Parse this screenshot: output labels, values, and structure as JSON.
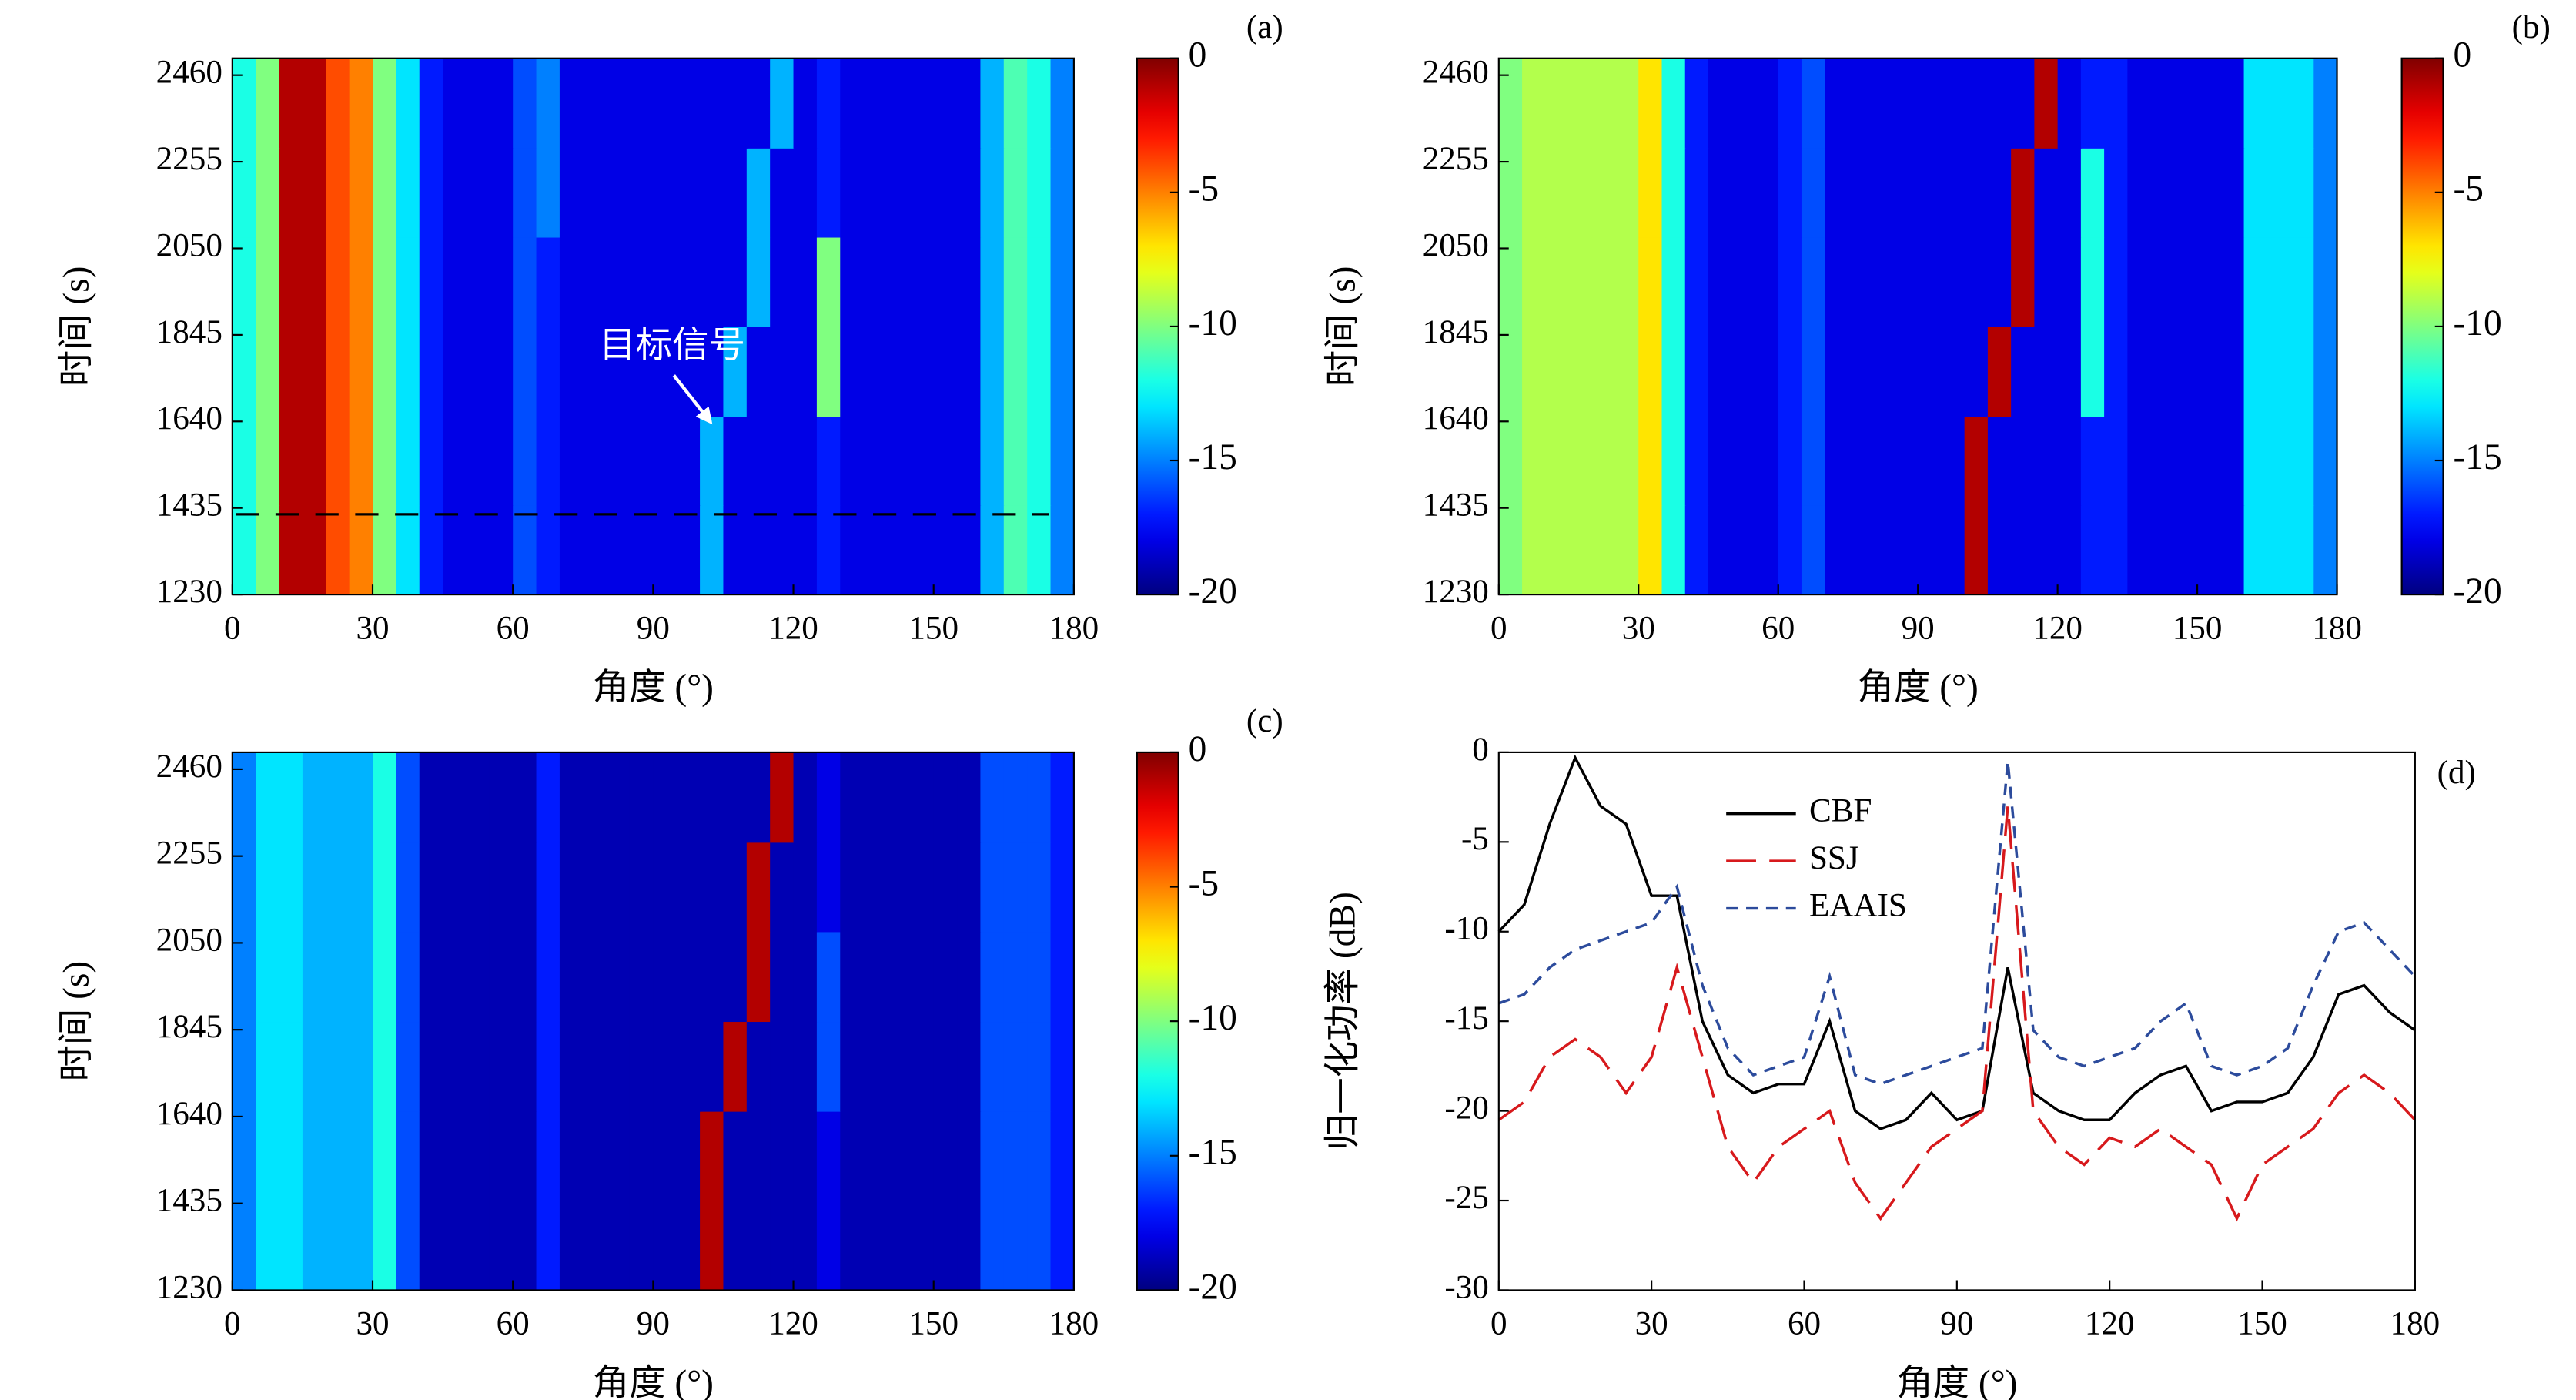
{
  "chart_data": [
    {
      "type": "heatmap",
      "label": "(a)",
      "xlabel": "角度 (°)",
      "ylabel": "时间 (s)",
      "colormap": "jet",
      "xlim": [
        0,
        180
      ],
      "xticks": [
        0,
        30,
        60,
        90,
        120,
        150,
        180
      ],
      "ylim": [
        1230,
        2500
      ],
      "yticks": [
        1230,
        1435,
        1640,
        1845,
        2050,
        2255,
        2460
      ],
      "zlim": [
        -20,
        0
      ],
      "zticks": [
        0,
        -5,
        -10,
        -15,
        -20
      ],
      "annotation": "目标信号",
      "hline": 1420,
      "x_bins": [
        0,
        5,
        10,
        15,
        20,
        25,
        30,
        35,
        40,
        45,
        50,
        55,
        60,
        65,
        70,
        75,
        80,
        85,
        90,
        95,
        100,
        105,
        110,
        115,
        120,
        125,
        130,
        135,
        140,
        145,
        150,
        155,
        160,
        165,
        170,
        175,
        180
      ],
      "y_bins": [
        1230,
        1442,
        1653,
        1865,
        2077,
        2288,
        2500
      ],
      "z": [
        [
          -12,
          -10,
          -1,
          -1,
          -4,
          -5,
          -10,
          -13,
          -17,
          -18,
          -18,
          -18,
          -16,
          -17,
          -18,
          -18,
          -18,
          -18,
          -18,
          -18,
          -14,
          -18,
          -18,
          -18,
          -18,
          -17,
          -18,
          -18,
          -18,
          -18,
          -18,
          -18,
          -14,
          -11,
          -12,
          -15
        ],
        [
          -12,
          -10,
          -1,
          -1,
          -4,
          -5,
          -10,
          -13,
          -17,
          -18,
          -18,
          -18,
          -16,
          -17,
          -18,
          -18,
          -18,
          -18,
          -18,
          -18,
          -14,
          -18,
          -18,
          -18,
          -18,
          -17,
          -18,
          -18,
          -18,
          -18,
          -18,
          -18,
          -14,
          -11,
          -12,
          -15
        ],
        [
          -12,
          -10,
          -1,
          -1,
          -4,
          -5,
          -10,
          -13,
          -17,
          -18,
          -18,
          -18,
          -16,
          -17,
          -18,
          -18,
          -18,
          -18,
          -18,
          -18,
          -18,
          -14,
          -18,
          -18,
          -18,
          -10,
          -18,
          -18,
          -18,
          -18,
          -18,
          -18,
          -14,
          -11,
          -12,
          -15
        ],
        [
          -12,
          -10,
          -1,
          -1,
          -4,
          -5,
          -10,
          -13,
          -17,
          -18,
          -18,
          -18,
          -16,
          -17,
          -18,
          -18,
          -18,
          -18,
          -18,
          -18,
          -18,
          -18,
          -14,
          -18,
          -18,
          -10,
          -18,
          -18,
          -18,
          -18,
          -18,
          -18,
          -14,
          -11,
          -12,
          -15
        ],
        [
          -12,
          -10,
          -1,
          -1,
          -4,
          -5,
          -10,
          -13,
          -17,
          -18,
          -18,
          -18,
          -16,
          -15,
          -18,
          -18,
          -18,
          -18,
          -18,
          -18,
          -18,
          -18,
          -14,
          -18,
          -18,
          -17,
          -18,
          -18,
          -18,
          -18,
          -18,
          -18,
          -14,
          -11,
          -12,
          -15
        ],
        [
          -12,
          -10,
          -1,
          -1,
          -4,
          -5,
          -10,
          -13,
          -17,
          -18,
          -18,
          -18,
          -16,
          -15,
          -18,
          -18,
          -18,
          -18,
          -18,
          -18,
          -18,
          -18,
          -18,
          -14,
          -18,
          -17,
          -18,
          -18,
          -18,
          -18,
          -18,
          -18,
          -14,
          -11,
          -12,
          -15
        ]
      ]
    },
    {
      "type": "heatmap",
      "label": "(b)",
      "xlabel": "角度 (°)",
      "ylabel": "时间 (s)",
      "colormap": "jet",
      "xlim": [
        0,
        180
      ],
      "xticks": [
        0,
        30,
        60,
        90,
        120,
        150,
        180
      ],
      "ylim": [
        1230,
        2500
      ],
      "yticks": [
        1230,
        1435,
        1640,
        1845,
        2050,
        2255,
        2460
      ],
      "zlim": [
        -20,
        0
      ],
      "zticks": [
        0,
        -5,
        -10,
        -15,
        -20
      ],
      "x_bins": [
        0,
        5,
        10,
        15,
        20,
        25,
        30,
        35,
        40,
        45,
        50,
        55,
        60,
        65,
        70,
        75,
        80,
        85,
        90,
        95,
        100,
        105,
        110,
        115,
        120,
        125,
        130,
        135,
        140,
        145,
        150,
        155,
        160,
        165,
        170,
        175,
        180
      ],
      "y_bins": [
        1230,
        1442,
        1653,
        1865,
        2077,
        2288,
        2500
      ],
      "z": [
        [
          -10,
          -9,
          -9,
          -9,
          -9,
          -9,
          -7,
          -12,
          -17,
          -18,
          -18,
          -18,
          -17,
          -16,
          -18,
          -18,
          -18,
          -18,
          -18,
          -18,
          -1,
          -18,
          -18,
          -18,
          -18,
          -17,
          -17,
          -18,
          -18,
          -18,
          -18,
          -18,
          -13,
          -13,
          -13,
          -15
        ],
        [
          -10,
          -9,
          -9,
          -9,
          -9,
          -9,
          -7,
          -12,
          -17,
          -18,
          -18,
          -18,
          -17,
          -16,
          -18,
          -18,
          -18,
          -18,
          -18,
          -18,
          -1,
          -18,
          -18,
          -18,
          -18,
          -17,
          -17,
          -18,
          -18,
          -18,
          -18,
          -18,
          -13,
          -13,
          -13,
          -15
        ],
        [
          -10,
          -9,
          -9,
          -9,
          -9,
          -9,
          -7,
          -12,
          -17,
          -18,
          -18,
          -18,
          -17,
          -16,
          -18,
          -18,
          -18,
          -18,
          -18,
          -18,
          -18,
          -1,
          -18,
          -18,
          -18,
          -12,
          -17,
          -18,
          -18,
          -18,
          -18,
          -18,
          -13,
          -13,
          -13,
          -15
        ],
        [
          -10,
          -9,
          -9,
          -9,
          -9,
          -9,
          -7,
          -12,
          -17,
          -18,
          -18,
          -18,
          -17,
          -16,
          -18,
          -18,
          -18,
          -18,
          -18,
          -18,
          -18,
          -18,
          -1,
          -18,
          -18,
          -12,
          -17,
          -18,
          -18,
          -18,
          -18,
          -18,
          -13,
          -13,
          -13,
          -15
        ],
        [
          -10,
          -9,
          -9,
          -9,
          -9,
          -9,
          -7,
          -12,
          -17,
          -18,
          -18,
          -18,
          -17,
          -16,
          -18,
          -18,
          -18,
          -18,
          -18,
          -18,
          -18,
          -18,
          -1,
          -18,
          -18,
          -12,
          -17,
          -18,
          -18,
          -18,
          -18,
          -18,
          -13,
          -13,
          -13,
          -15
        ],
        [
          -10,
          -9,
          -9,
          -9,
          -9,
          -9,
          -7,
          -12,
          -17,
          -18,
          -18,
          -18,
          -17,
          -16,
          -18,
          -18,
          -18,
          -18,
          -18,
          -18,
          -18,
          -18,
          -18,
          -1,
          -18,
          -17,
          -17,
          -18,
          -18,
          -18,
          -18,
          -18,
          -13,
          -13,
          -13,
          -15
        ]
      ]
    },
    {
      "type": "heatmap",
      "label": "(c)",
      "xlabel": "角度 (°)",
      "ylabel": "时间 (s)",
      "colormap": "jet",
      "xlim": [
        0,
        180
      ],
      "xticks": [
        0,
        30,
        60,
        90,
        120,
        150,
        180
      ],
      "ylim": [
        1230,
        2500
      ],
      "yticks": [
        1230,
        1435,
        1640,
        1845,
        2050,
        2255,
        2460
      ],
      "zlim": [
        -20,
        0
      ],
      "zticks": [
        0,
        -5,
        -10,
        -15,
        -20
      ],
      "x_bins": [
        0,
        5,
        10,
        15,
        20,
        25,
        30,
        35,
        40,
        45,
        50,
        55,
        60,
        65,
        70,
        75,
        80,
        85,
        90,
        95,
        100,
        105,
        110,
        115,
        120,
        125,
        130,
        135,
        140,
        145,
        150,
        155,
        160,
        165,
        170,
        175,
        180
      ],
      "y_bins": [
        1230,
        1442,
        1653,
        1865,
        2077,
        2288,
        2500
      ],
      "z": [
        [
          -15,
          -13,
          -13,
          -14,
          -14,
          -14,
          -12,
          -16,
          -19,
          -19,
          -19,
          -19,
          -19,
          -17,
          -19,
          -19,
          -19,
          -19,
          -19,
          -19,
          -1,
          -19,
          -19,
          -19,
          -19,
          -18,
          -19,
          -19,
          -19,
          -19,
          -19,
          -19,
          -16,
          -16,
          -16,
          -17
        ],
        [
          -15,
          -13,
          -13,
          -14,
          -14,
          -14,
          -12,
          -16,
          -19,
          -19,
          -19,
          -19,
          -19,
          -17,
          -19,
          -19,
          -19,
          -19,
          -19,
          -19,
          -1,
          -19,
          -19,
          -19,
          -19,
          -18,
          -19,
          -19,
          -19,
          -19,
          -19,
          -19,
          -16,
          -16,
          -16,
          -17
        ],
        [
          -15,
          -13,
          -13,
          -14,
          -14,
          -14,
          -12,
          -16,
          -19,
          -19,
          -19,
          -19,
          -19,
          -17,
          -19,
          -19,
          -19,
          -19,
          -19,
          -19,
          -19,
          -1,
          -19,
          -19,
          -19,
          -16,
          -19,
          -19,
          -19,
          -19,
          -19,
          -19,
          -16,
          -16,
          -16,
          -17
        ],
        [
          -15,
          -13,
          -13,
          -14,
          -14,
          -14,
          -12,
          -16,
          -19,
          -19,
          -19,
          -19,
          -19,
          -17,
          -19,
          -19,
          -19,
          -19,
          -19,
          -19,
          -19,
          -19,
          -1,
          -19,
          -19,
          -16,
          -19,
          -19,
          -19,
          -19,
          -19,
          -19,
          -16,
          -16,
          -16,
          -17
        ],
        [
          -15,
          -13,
          -13,
          -14,
          -14,
          -14,
          -12,
          -16,
          -19,
          -19,
          -19,
          -19,
          -19,
          -17,
          -19,
          -19,
          -19,
          -19,
          -19,
          -19,
          -19,
          -19,
          -1,
          -19,
          -19,
          -18,
          -19,
          -19,
          -19,
          -19,
          -19,
          -19,
          -16,
          -16,
          -16,
          -17
        ],
        [
          -15,
          -13,
          -13,
          -14,
          -14,
          -14,
          -12,
          -16,
          -19,
          -19,
          -19,
          -19,
          -19,
          -17,
          -19,
          -19,
          -19,
          -19,
          -19,
          -19,
          -19,
          -19,
          -19,
          -1,
          -19,
          -18,
          -19,
          -19,
          -19,
          -19,
          -19,
          -19,
          -16,
          -16,
          -16,
          -17
        ]
      ]
    },
    {
      "type": "line",
      "label": "(d)",
      "xlabel": "角度 (°)",
      "ylabel": "归一化功率 (dB)",
      "xlim": [
        0,
        180
      ],
      "xticks": [
        0,
        30,
        60,
        90,
        120,
        150,
        180
      ],
      "ylim": [
        -30,
        0
      ],
      "yticks": [
        0,
        -5,
        -10,
        -15,
        -20,
        -25,
        -30
      ],
      "x": [
        0,
        5,
        10,
        15,
        20,
        25,
        30,
        35,
        40,
        45,
        50,
        55,
        60,
        65,
        70,
        75,
        80,
        85,
        90,
        95,
        100,
        105,
        110,
        115,
        120,
        125,
        130,
        135,
        140,
        145,
        150,
        155,
        160,
        165,
        170,
        175,
        180
      ],
      "series": [
        {
          "name": "CBF",
          "color": "#000000",
          "dash": "none",
          "values": [
            -10,
            -8.5,
            -4,
            -0.3,
            -3,
            -4,
            -8,
            -8,
            -15,
            -18,
            -19,
            -18.5,
            -18.5,
            -15,
            -20,
            -21,
            -20.5,
            -19,
            -20.5,
            -20,
            -12,
            -19,
            -20,
            -20.5,
            -20.5,
            -19,
            -18,
            -17.5,
            -20,
            -19.5,
            -19.5,
            -19,
            -17,
            -13.5,
            -13,
            -14.5,
            -15.5
          ]
        },
        {
          "name": "SSJ",
          "color": "#d7191c",
          "dash": "18 8",
          "values": [
            -20.5,
            -19.5,
            -17,
            -16,
            -17,
            -19,
            -17,
            -12,
            -17,
            -22,
            -24,
            -22,
            -21,
            -20,
            -24,
            -26,
            -24,
            -22,
            -21,
            -20,
            -3,
            -20,
            -22,
            -23,
            -21.5,
            -22,
            -21,
            -22,
            -23,
            -26,
            -23,
            -22,
            -21,
            -19,
            -18,
            -19,
            -20.5
          ]
        },
        {
          "name": "EAAIS",
          "color": "#2c4b9c",
          "dash": "7 5",
          "values": [
            -14,
            -13.5,
            -12,
            -11,
            -10.5,
            -10,
            -9.5,
            -7.5,
            -13,
            -16.5,
            -18,
            -17.5,
            -17,
            -12.5,
            -18,
            -18.5,
            -18,
            -17.5,
            -17,
            -16.5,
            -0.5,
            -15.5,
            -17,
            -17.5,
            -17,
            -16.5,
            -15,
            -14,
            -17.5,
            -18,
            -17.5,
            -16.5,
            -13,
            -10,
            -9.5,
            -11,
            -12.5
          ]
        }
      ]
    }
  ]
}
